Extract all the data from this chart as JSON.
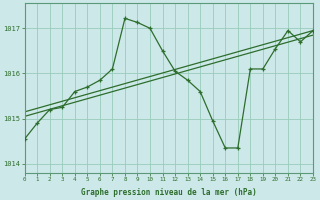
{
  "background_color": "#cde8e8",
  "grid_color": "#99ccbb",
  "line_color": "#2d6e2d",
  "ylabel_ticks": [
    1014,
    1015,
    1016,
    1017
  ],
  "xlabel_ticks": [
    0,
    1,
    2,
    3,
    4,
    5,
    6,
    7,
    8,
    9,
    10,
    11,
    12,
    13,
    14,
    15,
    16,
    17,
    18,
    19,
    20,
    21,
    22,
    23
  ],
  "xlabel": "Graphe pression niveau de la mer (hPa)",
  "xlim": [
    0,
    23
  ],
  "ylim": [
    1013.8,
    1017.55
  ],
  "trend1": {
    "x": [
      0,
      23
    ],
    "y": [
      1015.05,
      1016.85
    ]
  },
  "trend2": {
    "x": [
      0,
      23
    ],
    "y": [
      1015.15,
      1016.95
    ]
  },
  "series_main": {
    "x": [
      0,
      1,
      2,
      3,
      4,
      5,
      6,
      7,
      8,
      9,
      10,
      11,
      12,
      13,
      14,
      15,
      16,
      17,
      18,
      19,
      20,
      21,
      22,
      23
    ],
    "y": [
      1014.55,
      1014.9,
      1015.2,
      1015.25,
      1015.6,
      1015.7,
      1015.85,
      1016.1,
      1017.22,
      1017.13,
      1017.0,
      1016.5,
      1016.05,
      1015.85,
      1015.6,
      1014.95,
      1014.35,
      1014.35,
      1016.1,
      1016.1,
      1016.55,
      1016.95,
      1016.7,
      1016.95
    ]
  }
}
